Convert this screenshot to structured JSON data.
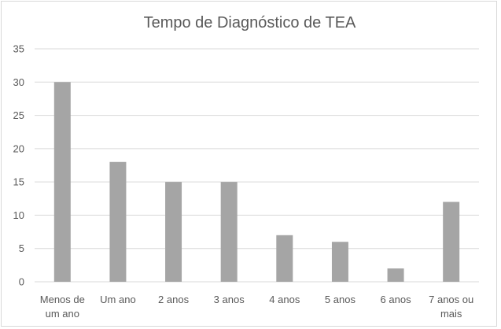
{
  "chart_data": {
    "type": "bar",
    "title": "Tempo de Diagnóstico de TEA",
    "xlabel": "",
    "ylabel": "",
    "categories": [
      [
        "Menos de",
        "um ano"
      ],
      [
        "Um ano"
      ],
      [
        "2 anos"
      ],
      [
        "3 anos"
      ],
      [
        "4 anos"
      ],
      [
        "5 anos"
      ],
      [
        "6 anos"
      ],
      [
        "7 anos ou",
        "mais"
      ]
    ],
    "values": [
      30,
      18,
      15,
      15,
      7,
      6,
      2,
      12
    ],
    "ylim": [
      0,
      35
    ],
    "yticks": [
      0,
      5,
      10,
      15,
      20,
      25,
      30,
      35
    ],
    "grid": true,
    "legend": "none",
    "bar_color": "#a5a5a5",
    "grid_color": "#d9d9d9",
    "axis_color": "#d9d9d9",
    "text_color": "#595959"
  }
}
